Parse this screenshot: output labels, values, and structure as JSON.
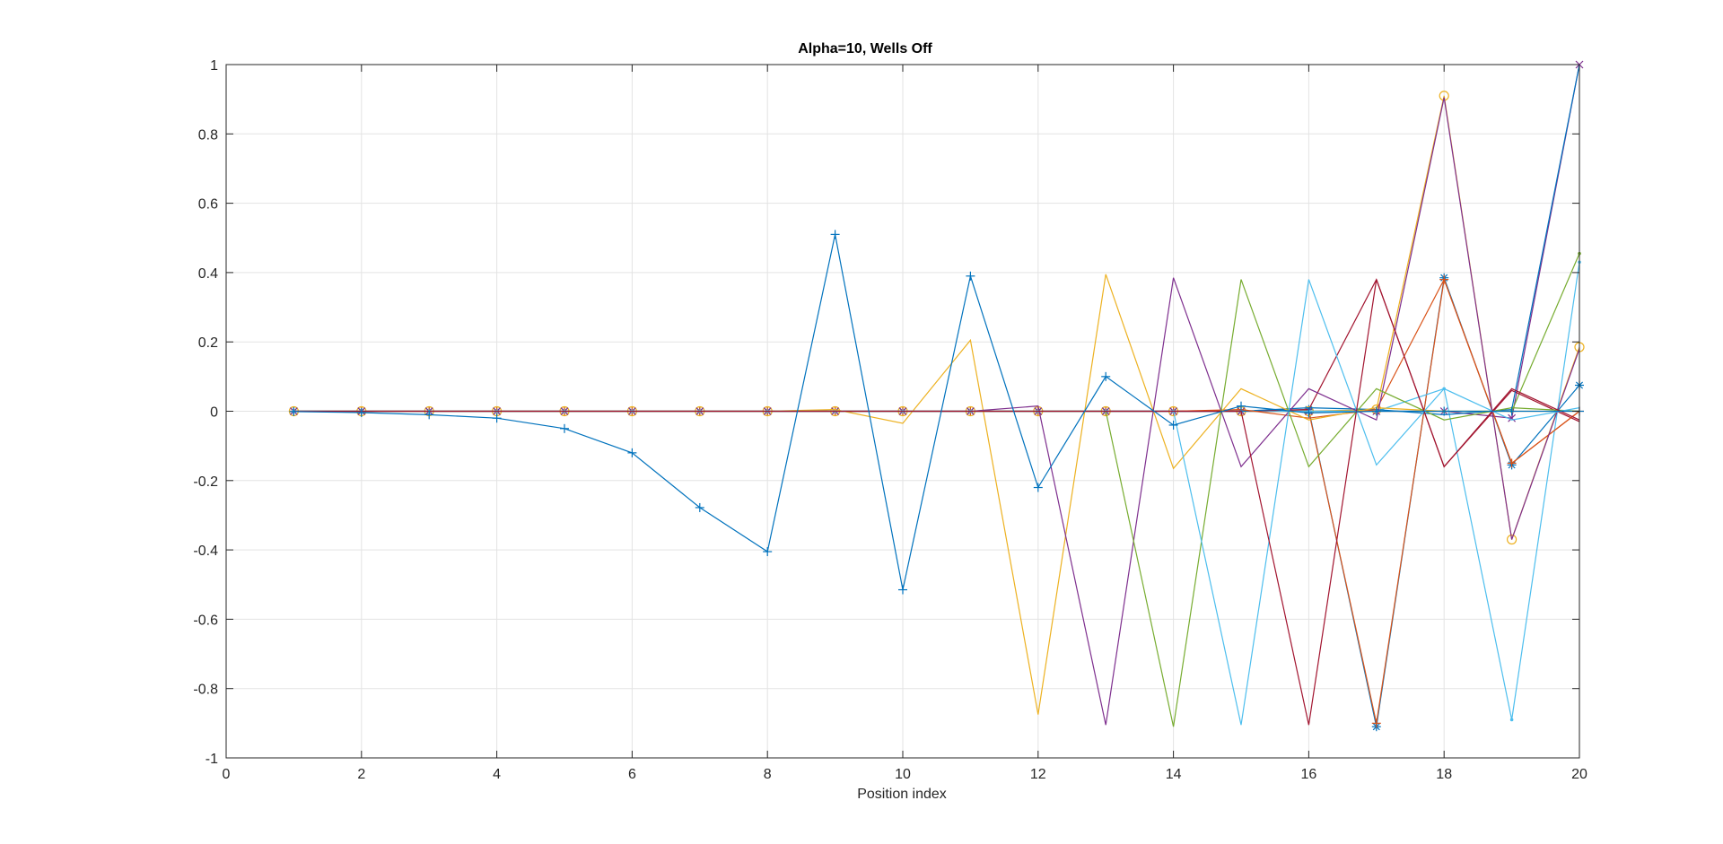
{
  "chart_data": {
    "type": "line",
    "title": "Alpha=10, Wells Off",
    "xlabel": "Position index",
    "ylabel": "",
    "xlim": [
      0,
      20
    ],
    "ylim": [
      -1,
      1
    ],
    "xticks": [
      0,
      2,
      4,
      6,
      8,
      10,
      12,
      14,
      16,
      18,
      20
    ],
    "yticks": [
      -1,
      -0.8,
      -0.6,
      -0.4,
      -0.2,
      0,
      0.2,
      0.4,
      0.6,
      0.8,
      1
    ],
    "ytick_labels": [
      "-1",
      "-0.8",
      "-0.6",
      "-0.4",
      "-0.2",
      "0",
      "0.2",
      "0.4",
      "0.6",
      "0.8",
      "1"
    ],
    "grid": true,
    "x": [
      1,
      2,
      3,
      4,
      5,
      6,
      7,
      8,
      9,
      10,
      11,
      12,
      13,
      14,
      15,
      16,
      17,
      18,
      19,
      20
    ],
    "series": [
      {
        "color": "#0072BD",
        "marker": "*",
        "values": [
          0,
          0,
          0,
          0,
          0,
          0,
          0,
          0,
          0,
          0,
          0,
          0,
          0,
          0,
          0,
          0.005,
          -0.91,
          0.385,
          -0.155,
          0.075
        ]
      },
      {
        "color": "#D95319",
        "marker": "+",
        "values": [
          0,
          0,
          0,
          0,
          0,
          0,
          0,
          0,
          0,
          0,
          0,
          0,
          0,
          0,
          0,
          0,
          -0.9,
          0.38,
          -0.15,
          0
        ]
      },
      {
        "color": "#EDB120",
        "marker": "o",
        "values": [
          0,
          0,
          0,
          0,
          0,
          0,
          0,
          0,
          0,
          0,
          0,
          0,
          0,
          0,
          0,
          0,
          0.005,
          0.91,
          -0.37,
          0.185
        ]
      },
      {
        "color": "#7E2F8E",
        "marker": "x",
        "values": [
          0,
          0,
          0,
          0,
          0,
          0,
          0,
          0,
          0,
          0,
          0,
          0,
          0,
          0,
          0,
          0,
          0,
          0,
          -0.02,
          1.0
        ]
      },
      {
        "color": "#77AC30",
        "marker": ".",
        "values": [
          0,
          0,
          0,
          0,
          0,
          0,
          0,
          0,
          0,
          0,
          0,
          0,
          0,
          0,
          0,
          0,
          0,
          0,
          0,
          0.455
        ]
      },
      {
        "color": "#4DBEEE",
        "marker": ".",
        "values": [
          0,
          0,
          0,
          0,
          0,
          0,
          0,
          0,
          0,
          0,
          0,
          0,
          0,
          0,
          0,
          0,
          0,
          0.065,
          -0.89,
          0.43
        ]
      },
      {
        "color": "#A2142F",
        "marker": "none",
        "values": [
          0,
          0,
          0,
          0,
          0,
          0,
          0,
          0,
          0,
          0,
          0,
          0,
          0,
          0,
          0,
          0.005,
          0.38,
          -0.16,
          0.06,
          -0.03
        ]
      },
      {
        "color": "#0072BD",
        "marker": "none",
        "values": [
          0,
          0,
          0,
          0,
          0,
          0,
          0,
          0,
          0,
          0,
          0,
          0,
          0,
          0,
          0,
          0.01,
          0.005,
          -0.01,
          0.005,
          1.0
        ]
      },
      {
        "color": "#D95319",
        "marker": "none",
        "values": [
          0,
          0,
          0,
          0,
          0,
          0,
          0,
          0,
          0,
          0,
          0,
          0,
          0,
          0,
          0.005,
          -0.02,
          0.005,
          0.38,
          -0.15,
          0
        ]
      },
      {
        "color": "#EDB120",
        "marker": "none",
        "values": [
          0,
          0,
          0,
          0,
          0,
          0,
          0,
          0,
          0.005,
          -0.035,
          0.205,
          -0.875,
          0.395,
          -0.165,
          0.065,
          -0.025,
          0.01,
          0,
          0,
          0
        ]
      },
      {
        "color": "#7E2F8E",
        "marker": "none",
        "values": [
          0,
          0,
          0,
          0,
          0,
          0,
          0,
          0,
          0,
          0,
          0,
          0.015,
          -0.905,
          0.385,
          -0.16,
          0.065,
          -0.025,
          0.905,
          -0.37,
          0.18
        ]
      },
      {
        "color": "#77AC30",
        "marker": "none",
        "values": [
          0,
          0,
          0,
          0,
          0,
          0,
          0,
          0,
          0,
          0,
          0,
          0,
          0,
          -0.91,
          0.38,
          -0.16,
          0.065,
          -0.025,
          0.01,
          0
        ]
      },
      {
        "color": "#4DBEEE",
        "marker": "none",
        "values": [
          0,
          0,
          0,
          0,
          0,
          0,
          0,
          0,
          0,
          0,
          0,
          0,
          0,
          0,
          -0.905,
          0.38,
          -0.155,
          0.065,
          -0.025,
          0.01
        ]
      },
      {
        "color": "#A2142F",
        "marker": "none",
        "values": [
          0,
          0,
          0,
          0,
          0,
          0,
          0,
          0,
          0,
          0,
          0,
          0,
          0,
          0,
          0,
          -0.905,
          0.38,
          -0.16,
          0.065,
          -0.025
        ]
      },
      {
        "color": "#0072BD",
        "marker": "+",
        "values": [
          -0.001,
          -0.004,
          -0.01,
          -0.02,
          -0.05,
          -0.12,
          -0.278,
          -0.405,
          0.51,
          -0.515,
          0.39,
          -0.22,
          0.1,
          -0.04,
          0.015,
          -0.005,
          0,
          0,
          0,
          0
        ]
      }
    ]
  }
}
